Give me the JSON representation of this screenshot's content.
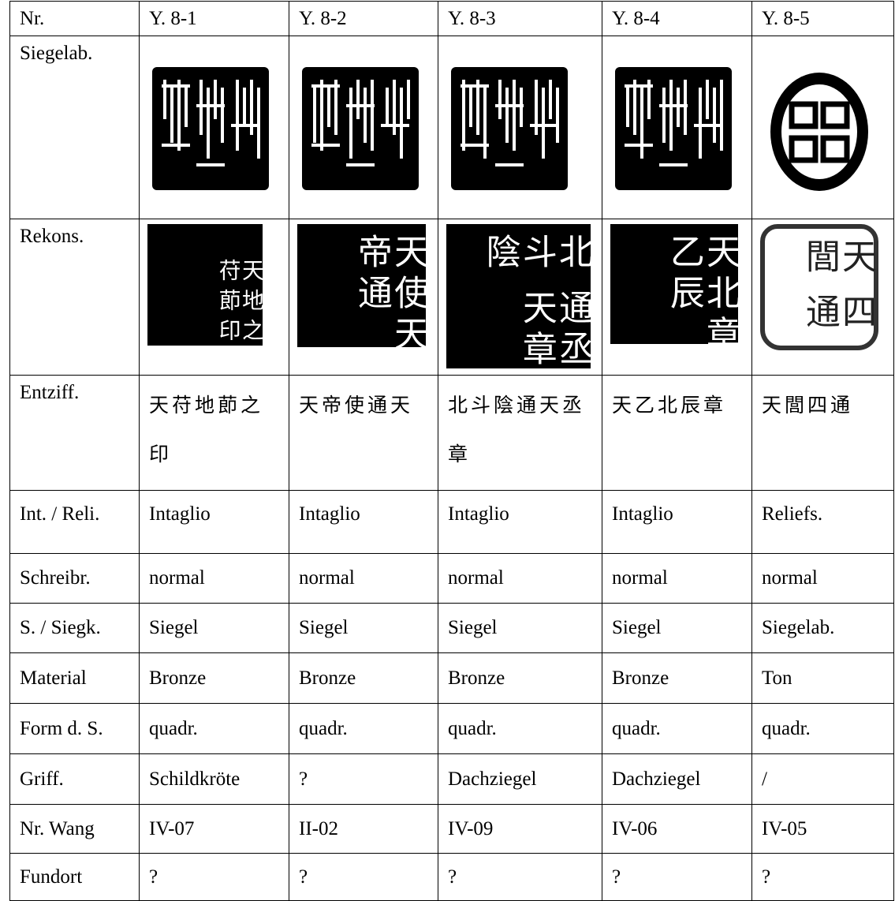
{
  "table": {
    "header": [
      "Nr.",
      "Y. 8-1",
      "Y. 8-2",
      "Y. 8-3",
      "Y. 8-4",
      "Y. 8-5"
    ],
    "rows": [
      {
        "label": "Siegelab."
      },
      {
        "label": "Rekons.",
        "cells": [
          [
            "天苻",
            "地莭",
            "之印"
          ],
          [
            "天帝",
            "使通",
            "天"
          ],
          [
            "北斗陰",
            "通天",
            "丞章"
          ],
          [
            "天乙",
            "北辰",
            "章"
          ],
          [
            "天閭",
            "四通"
          ]
        ]
      },
      {
        "label": "Entziff.",
        "cells": [
          "天苻地莭之印",
          "天帝使通天",
          "北斗陰通天丞章",
          "天乙北辰章",
          "天閭四通"
        ]
      },
      {
        "label": "Int. / Reli.",
        "cells": [
          "Intaglio",
          "Intaglio",
          "Intaglio",
          "Intaglio",
          "Reliefs."
        ]
      },
      {
        "label": "Schreibr.",
        "cells": [
          "normal",
          "normal",
          "normal",
          "normal",
          "normal"
        ]
      },
      {
        "label": "S. / Siegk.",
        "cells": [
          "Siegel",
          "Siegel",
          "Siegel",
          "Siegel",
          "Siegelab."
        ]
      },
      {
        "label": "Material",
        "cells": [
          "Bronze",
          "Bronze",
          "Bronze",
          "Bronze",
          "Ton"
        ]
      },
      {
        "label": "Form d. S.",
        "cells": [
          "quadr.",
          "quadr.",
          "quadr.",
          "quadr.",
          "quadr."
        ]
      },
      {
        "label": "Griff.",
        "cells": [
          "Schildkröte",
          "?",
          "Dachziegel",
          "Dachziegel",
          "/"
        ]
      },
      {
        "label": "Nr. Wang",
        "cells": [
          "IV-07",
          "II-02",
          "IV-09",
          "IV-06",
          "IV-05"
        ]
      },
      {
        "label": "Fundort",
        "cells": [
          "?",
          "?",
          "?",
          "?",
          "?"
        ]
      }
    ]
  }
}
